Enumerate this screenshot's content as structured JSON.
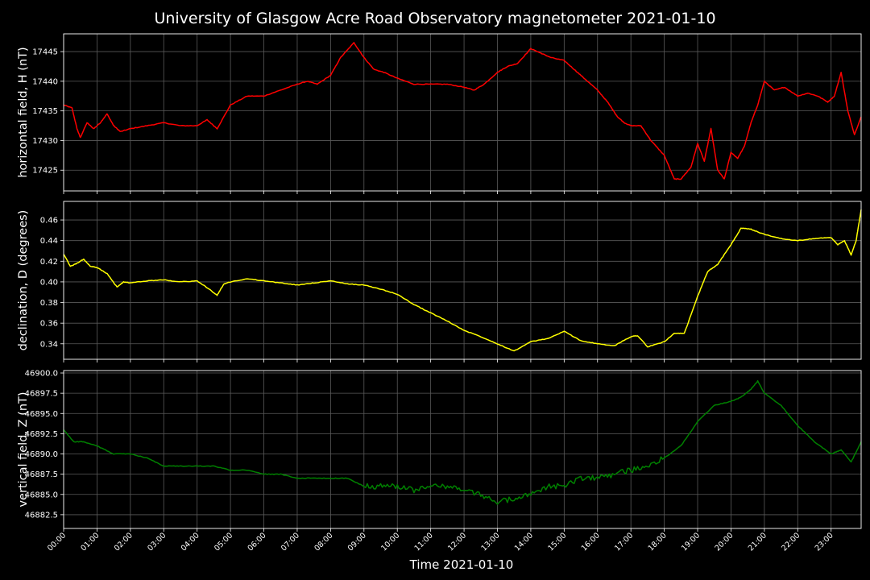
{
  "figure": {
    "title": "University of Glasgow Acre Road Observatory magnetometer 2021-01-10",
    "xlabel": "Time 2021-01-10"
  },
  "chart_data": [
    {
      "type": "line",
      "ylabel": "horizontal field, H (nT)",
      "color": "#ff0000",
      "grid": true,
      "xlim": [
        0,
        23.9
      ],
      "ylim": [
        17421.5,
        17448
      ],
      "yticks": [
        17425,
        17430,
        17435,
        17440,
        17445
      ],
      "ytick_labels": [
        "17425",
        "17430",
        "17435",
        "17440",
        "17445"
      ],
      "x_hours": [
        0,
        0.25,
        0.4,
        0.5,
        0.7,
        0.9,
        1.1,
        1.3,
        1.5,
        1.7,
        2,
        2.5,
        3,
        3.5,
        4,
        4.3,
        4.6,
        5,
        5.5,
        6,
        6.5,
        7,
        7.3,
        7.6,
        8,
        8.3,
        8.7,
        9,
        9.3,
        9.6,
        10,
        10.5,
        11,
        11.5,
        12,
        12.3,
        12.6,
        13,
        13.3,
        13.6,
        14,
        14.2,
        14.4,
        14.6,
        15,
        15.3,
        15.6,
        16,
        16.3,
        16.6,
        16.8,
        17,
        17.3,
        17.6,
        18,
        18.3,
        18.5,
        18.8,
        19,
        19.2,
        19.4,
        19.6,
        19.8,
        20,
        20.2,
        20.4,
        20.6,
        20.8,
        21,
        21.3,
        21.6,
        22,
        22.3,
        22.6,
        22.9,
        23.1,
        23.3,
        23.5,
        23.7,
        23.9
      ],
      "values": [
        17436,
        17435.5,
        17432,
        17430.5,
        17433,
        17432,
        17433,
        17434.5,
        17432.5,
        17431.5,
        17432,
        17432.5,
        17433,
        17432.5,
        17432.5,
        17433.5,
        17432,
        17436,
        17437.5,
        17437.5,
        17438.5,
        17439.5,
        17440,
        17439.5,
        17441,
        17444,
        17446.5,
        17444,
        17442,
        17441.5,
        17440.5,
        17439.5,
        17439.5,
        17439.5,
        17439,
        17438.5,
        17439.5,
        17441.5,
        17442.5,
        17443,
        17445.5,
        17445,
        17444.5,
        17444,
        17443.5,
        17442,
        17440.5,
        17438.5,
        17436.5,
        17434,
        17433,
        17432.5,
        17432.5,
        17430,
        17427.5,
        17423.5,
        17423.5,
        17425.5,
        17429.5,
        17426.5,
        17432,
        17425,
        17423.5,
        17428,
        17427,
        17429,
        17433,
        17436,
        17440,
        17438.5,
        17439,
        17437.5,
        17438,
        17437.5,
        17436.5,
        17437.5,
        17441.5,
        17435,
        17431,
        17434
      ]
    },
    {
      "type": "line",
      "ylabel": "declination, D (degrees)",
      "color": "#ffff00",
      "grid": true,
      "xlim": [
        0,
        23.9
      ],
      "ylim": [
        0.325,
        0.478
      ],
      "yticks": [
        0.34,
        0.36,
        0.38,
        0.4,
        0.42,
        0.44,
        0.46
      ],
      "ytick_labels": [
        "0.34",
        "0.36",
        "0.38",
        "0.40",
        "0.42",
        "0.44",
        "0.46"
      ],
      "x_hours": [
        0,
        0.2,
        0.4,
        0.6,
        0.8,
        1,
        1.3,
        1.6,
        1.8,
        2,
        2.5,
        3,
        3.5,
        4,
        4.4,
        4.6,
        4.8,
        5,
        5.5,
        6,
        6.5,
        7,
        7.5,
        8,
        8.5,
        9,
        9.5,
        10,
        10.5,
        11,
        11.5,
        12,
        12.5,
        13,
        13.5,
        14,
        14.5,
        15,
        15.5,
        16,
        16.5,
        17,
        17.2,
        17.5,
        18,
        18.3,
        18.6,
        19,
        19.3,
        19.6,
        20,
        20.3,
        20.6,
        21,
        21.5,
        22,
        22.5,
        23,
        23.2,
        23.4,
        23.6,
        23.75,
        23.9
      ],
      "values": [
        0.427,
        0.415,
        0.418,
        0.422,
        0.415,
        0.414,
        0.408,
        0.395,
        0.4,
        0.399,
        0.401,
        0.402,
        0.4,
        0.401,
        0.392,
        0.387,
        0.398,
        0.4,
        0.403,
        0.401,
        0.399,
        0.397,
        0.399,
        0.401,
        0.398,
        0.397,
        0.393,
        0.388,
        0.378,
        0.37,
        0.362,
        0.353,
        0.347,
        0.34,
        0.333,
        0.342,
        0.345,
        0.352,
        0.343,
        0.34,
        0.338,
        0.347,
        0.348,
        0.337,
        0.342,
        0.35,
        0.35,
        0.386,
        0.41,
        0.417,
        0.436,
        0.452,
        0.451,
        0.446,
        0.442,
        0.44,
        0.442,
        0.443,
        0.436,
        0.44,
        0.426,
        0.44,
        0.47
      ]
    },
    {
      "type": "line",
      "ylabel": "vertical field, Z (nT)",
      "color": "#008000",
      "grid": true,
      "xlim": [
        0,
        23.9
      ],
      "ylim": [
        46880.8,
        46900.3
      ],
      "yticks": [
        46882.5,
        46885.0,
        46887.5,
        46890.0,
        46892.5,
        46895.0,
        46897.5,
        46900.0
      ],
      "ytick_labels": [
        "46882.5",
        "46885.0",
        "46887.5",
        "46890.0",
        "46892.5",
        "46895.0",
        "46897.5",
        "46900.0"
      ],
      "x_hours": [
        0,
        0.3,
        0.6,
        1,
        1.5,
        2,
        2.5,
        3,
        3.5,
        4,
        4.5,
        5,
        5.5,
        6,
        6.5,
        7,
        7.5,
        8,
        8.5,
        9,
        9.5,
        10,
        10.5,
        11,
        11.5,
        12,
        12.5,
        13,
        13.5,
        14,
        14.5,
        15,
        15.5,
        16,
        16.5,
        17,
        17.5,
        18,
        18.5,
        19,
        19.5,
        20,
        20.3,
        20.6,
        20.8,
        21,
        21.5,
        22,
        22.5,
        23,
        23.3,
        23.6,
        23.9
      ],
      "values": [
        46893,
        46891.5,
        46891.5,
        46891,
        46890,
        46890,
        46889.5,
        46888.5,
        46888.5,
        46888.5,
        46888.5,
        46888,
        46888,
        46887.5,
        46887.5,
        46887,
        46887,
        46887,
        46887,
        46886,
        46886,
        46886,
        46885.5,
        46886,
        46886,
        46885.5,
        46885,
        46884,
        46884.5,
        46885,
        46886,
        46886,
        46887,
        46887,
        46887.5,
        46888,
        46888.5,
        46889.5,
        46891,
        46894,
        46896,
        46896.5,
        46897,
        46898,
        46899,
        46897.5,
        46896,
        46893.5,
        46891.5,
        46890,
        46890.5,
        46889,
        46891.5
      ]
    }
  ],
  "x_ticks": [
    {
      "hour": 0,
      "label": "00:00"
    },
    {
      "hour": 1,
      "label": "01:00"
    },
    {
      "hour": 2,
      "label": "02:00"
    },
    {
      "hour": 3,
      "label": "03:00"
    },
    {
      "hour": 4,
      "label": "04:00"
    },
    {
      "hour": 5,
      "label": "05:00"
    },
    {
      "hour": 6,
      "label": "06:00"
    },
    {
      "hour": 7,
      "label": "07:00"
    },
    {
      "hour": 8,
      "label": "08:00"
    },
    {
      "hour": 9,
      "label": "09:00"
    },
    {
      "hour": 10,
      "label": "10:00"
    },
    {
      "hour": 11,
      "label": "11:00"
    },
    {
      "hour": 12,
      "label": "12:00"
    },
    {
      "hour": 13,
      "label": "13:00"
    },
    {
      "hour": 14,
      "label": "14:00"
    },
    {
      "hour": 15,
      "label": "15:00"
    },
    {
      "hour": 16,
      "label": "16:00"
    },
    {
      "hour": 17,
      "label": "17:00"
    },
    {
      "hour": 18,
      "label": "18:00"
    },
    {
      "hour": 19,
      "label": "19:00"
    },
    {
      "hour": 20,
      "label": "20:00"
    },
    {
      "hour": 21,
      "label": "21:00"
    },
    {
      "hour": 22,
      "label": "22:00"
    },
    {
      "hour": 23,
      "label": "23:00"
    }
  ]
}
